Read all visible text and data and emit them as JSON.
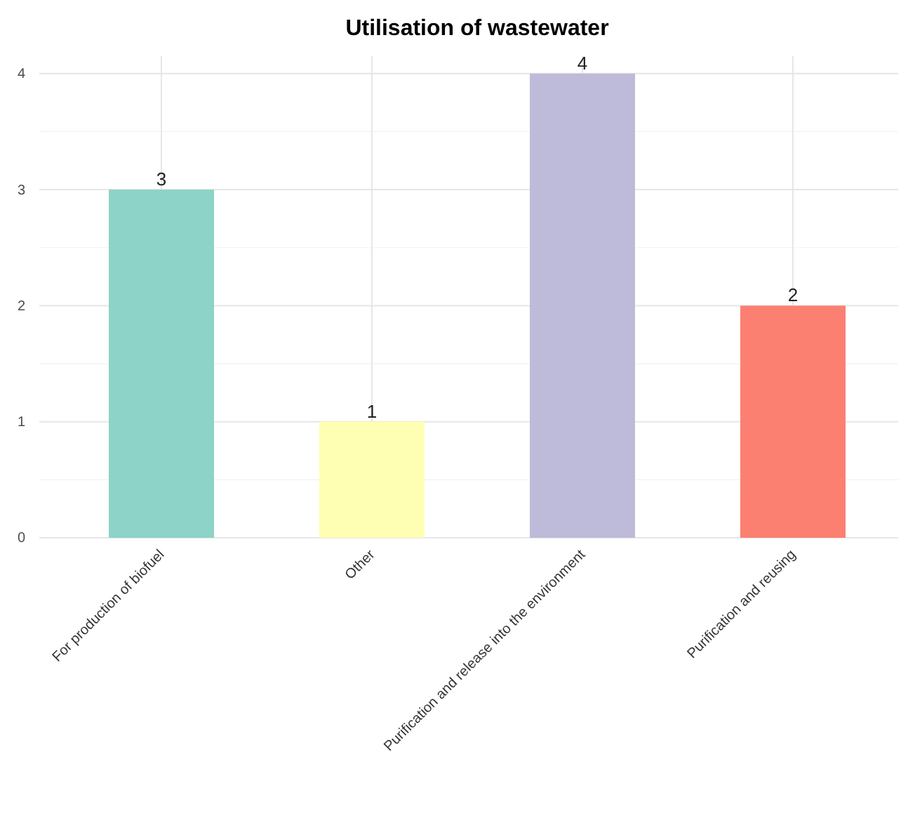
{
  "chart_data": {
    "type": "bar",
    "title": "Utilisation of wastewater",
    "categories": [
      "For production of biofuel",
      "Other",
      "Purification and release into the environment",
      "Purification and reusing"
    ],
    "values": [
      3,
      1,
      4,
      2
    ],
    "colors": [
      "#8dd3c7",
      "#ffffb3",
      "#bebada",
      "#fb8072"
    ],
    "ylim": [
      0,
      4.15
    ],
    "yticks": [
      0,
      1,
      2,
      3,
      4
    ],
    "grid": true,
    "data_labels": true
  }
}
